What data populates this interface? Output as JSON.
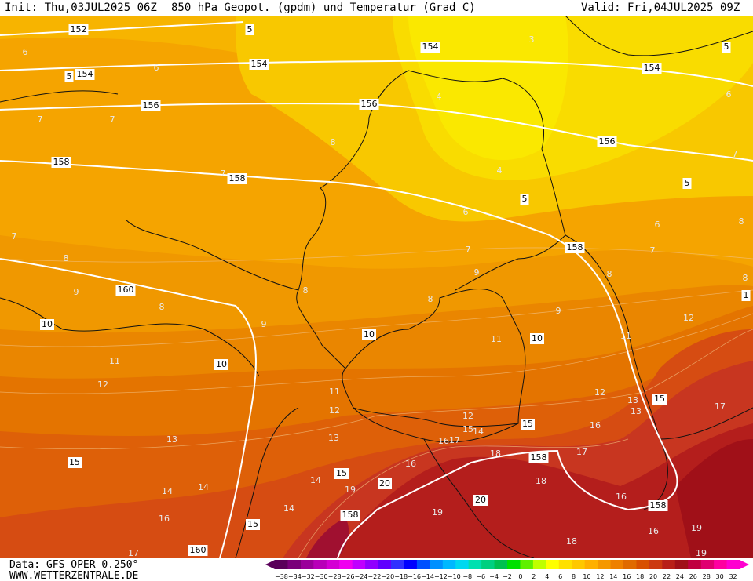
{
  "header": {
    "init": "Init: Thu,03JUL2025 06Z",
    "title": "850 hPa Geopot. (gpdm) und Temperatur (Grad C)",
    "valid": "Valid: Fri,04JUL2025 09Z"
  },
  "footer": {
    "source": "Data: GFS OPER 0.250°",
    "website": "WWW.WETTERZENTRALE.DE"
  },
  "geopotential_labels": [
    152,
    5,
    154,
    154,
    154,
    5,
    154,
    5,
    156,
    156,
    156,
    158,
    158,
    5,
    5,
    158,
    160,
    10,
    10,
    10,
    10,
    15,
    15,
    15,
    15,
    158,
    20,
    20,
    158,
    158,
    15,
    160,
    1
  ],
  "temperature_labels": [
    3,
    6,
    6,
    4,
    6,
    7,
    7,
    8,
    4,
    7,
    7,
    6,
    6,
    8,
    7,
    7,
    7,
    8,
    9,
    8,
    8,
    9,
    8,
    8,
    8,
    9,
    9,
    11,
    11,
    12,
    11,
    12,
    11,
    12,
    12,
    13,
    12,
    13,
    16,
    15,
    14,
    13,
    16,
    17,
    13,
    17,
    17,
    18,
    16,
    18,
    14,
    19,
    14,
    14,
    14,
    16,
    16,
    19,
    16,
    19,
    18,
    17,
    19
  ],
  "colorbar": {
    "labels": [
      "−38",
      "−34",
      "−32",
      "−30",
      "−28",
      "−26",
      "−24",
      "−22",
      "−20",
      "−18",
      "−16",
      "−14",
      "−12",
      "−10",
      "−8",
      "−6",
      "−4",
      "−2",
      "0",
      "2",
      "4",
      "6",
      "8",
      "10",
      "12",
      "14",
      "16",
      "18",
      "20",
      "22",
      "24",
      "26",
      "28",
      "30",
      "32"
    ],
    "colors": [
      "#5a005a",
      "#7a007a",
      "#9a009a",
      "#b800b8",
      "#d400d4",
      "#f000f0",
      "#c000ff",
      "#9000ff",
      "#6000ff",
      "#3030ff",
      "#0000ff",
      "#0050ff",
      "#0090ff",
      "#00b8ff",
      "#00d8f0",
      "#00e0b0",
      "#00d080",
      "#00c050",
      "#00e000",
      "#60f000",
      "#c0ff00",
      "#ffff00",
      "#ffe000",
      "#ffc800",
      "#ffb000",
      "#f59800",
      "#ee8000",
      "#e06a00",
      "#d85000",
      "#cc3a10",
      "#b82018",
      "#a01018",
      "#c00040",
      "#e00070",
      "#ff00a0",
      "#ff00d0"
    ]
  }
}
